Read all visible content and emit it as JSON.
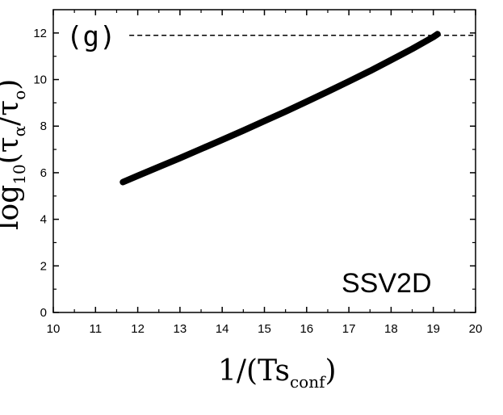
{
  "chart_data": {
    "type": "line",
    "panel_label": "(g)",
    "annotation": "SSV2D",
    "xlabel": {
      "main": "1/(Ts",
      "subscript": "conf",
      "close": ")"
    },
    "ylabel": {
      "prefix": "log",
      "prefix_subscript": "10",
      "open": "(τ",
      "tau_subscript": "α",
      "slash": "/τ",
      "tau0_subscript": "o",
      "close": ")"
    },
    "xlim": [
      10,
      20
    ],
    "ylim": [
      0,
      13
    ],
    "x_ticks": [
      "10",
      "11",
      "12",
      "13",
      "14",
      "15",
      "16",
      "17",
      "18",
      "19",
      "20"
    ],
    "y_ticks": [
      "0",
      "2",
      "4",
      "6",
      "8",
      "10",
      "12"
    ],
    "reference_line": {
      "y": 11.9,
      "style": "dashed",
      "x_start": 11.8
    },
    "grid": false,
    "series": [
      {
        "color": "#000000",
        "x": [
          11.65,
          12.0,
          12.5,
          13.0,
          13.5,
          14.0,
          14.5,
          15.0,
          15.5,
          16.0,
          16.5,
          17.0,
          17.5,
          18.0,
          18.5,
          19.0,
          19.1
        ],
        "y": [
          5.6,
          5.87,
          6.25,
          6.63,
          7.02,
          7.41,
          7.81,
          8.22,
          8.63,
          9.05,
          9.48,
          9.92,
          10.37,
          10.84,
          11.32,
          11.83,
          11.95
        ]
      }
    ]
  }
}
